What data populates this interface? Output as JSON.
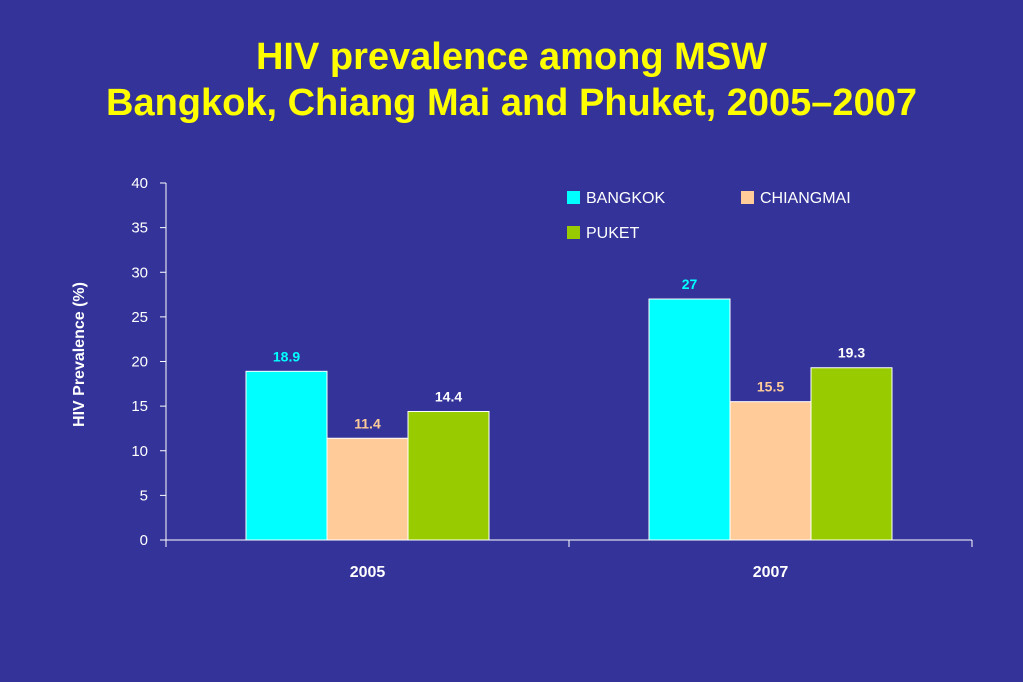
{
  "title_line1": "HIV prevalence among MSW",
  "title_line2": "Bangkok, Chiang Mai and Phuket, 2005–2007",
  "colors": {
    "background": "#333399",
    "title": "#ffff00",
    "bangkok": "#00ffff",
    "chiangmai": "#ffcc99",
    "puket": "#99cc00",
    "axis": "#ffffff"
  },
  "chart_data": {
    "type": "bar",
    "categories": [
      "2005",
      "2007"
    ],
    "series": [
      {
        "name": "BANGKOK",
        "values": [
          18.9,
          27
        ],
        "labels": [
          "18.9",
          "27"
        ],
        "color": "#00ffff",
        "label_color": "#00ffff"
      },
      {
        "name": "CHIANGMAI",
        "values": [
          11.4,
          15.5
        ],
        "labels": [
          "11.4",
          "15.5"
        ],
        "color": "#ffcc99",
        "label_color": "#ffcc99"
      },
      {
        "name": "PUKET",
        "values": [
          14.4,
          19.3
        ],
        "labels": [
          "14.4",
          "19.3"
        ],
        "color": "#99cc00",
        "label_color": "#ffffff"
      }
    ],
    "ylabel": "HIV Prevalence (%)",
    "xlabel": "",
    "ylim": [
      0,
      40
    ],
    "yticks": [
      0,
      5,
      10,
      15,
      20,
      25,
      30,
      35,
      40
    ],
    "grid": false,
    "legend_position": "top-right"
  }
}
